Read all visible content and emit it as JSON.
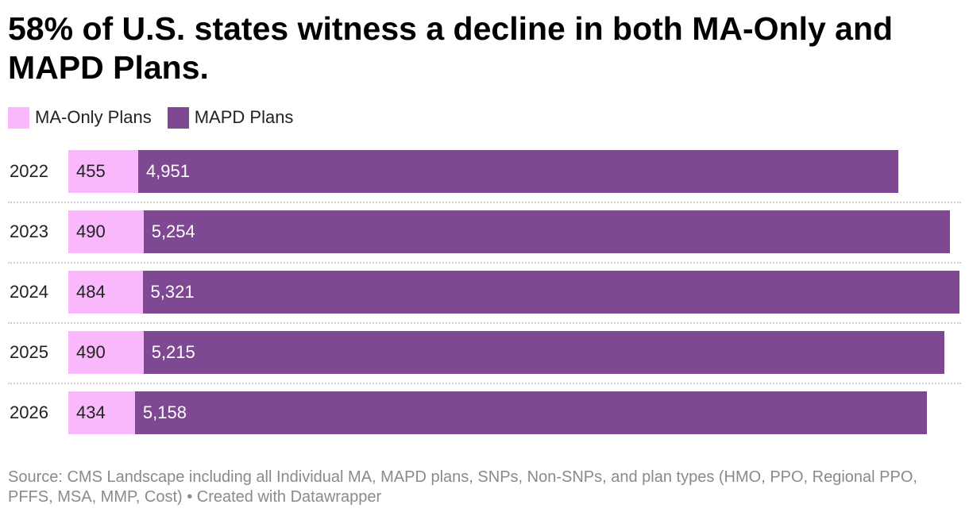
{
  "title": "58% of U.S. states witness a decline in both MA-Only and MAPD Plans.",
  "colors": {
    "ma_only": "#f9b8fb",
    "mapd": "#7e4892"
  },
  "chart_data": {
    "type": "bar",
    "orientation": "horizontal",
    "stacked": true,
    "title": "58% of U.S. states witness a decline in both MA-Only and MAPD Plans.",
    "legend": "top-left",
    "categories": [
      "2022",
      "2023",
      "2024",
      "2025",
      "2026"
    ],
    "series": [
      {
        "name": "MA-Only Plans",
        "values": [
          455,
          490,
          484,
          490,
          434
        ],
        "labels": [
          "455",
          "490",
          "484",
          "490",
          "434"
        ]
      },
      {
        "name": "MAPD Plans",
        "values": [
          4951,
          5254,
          5321,
          5215,
          5158
        ],
        "labels": [
          "4,951",
          "5,254",
          "5,321",
          "5,215",
          "5,158"
        ]
      }
    ],
    "xlim": [
      0,
      5805
    ],
    "grid": false
  },
  "footer": {
    "source": "Source: CMS Landscape including all Individual MA, MAPD plans, SNPs, Non-SNPs, and plan types (HMO, PPO, Regional PPO, PFFS, MSA, MMP, Cost) • Created with Datawrapper"
  }
}
